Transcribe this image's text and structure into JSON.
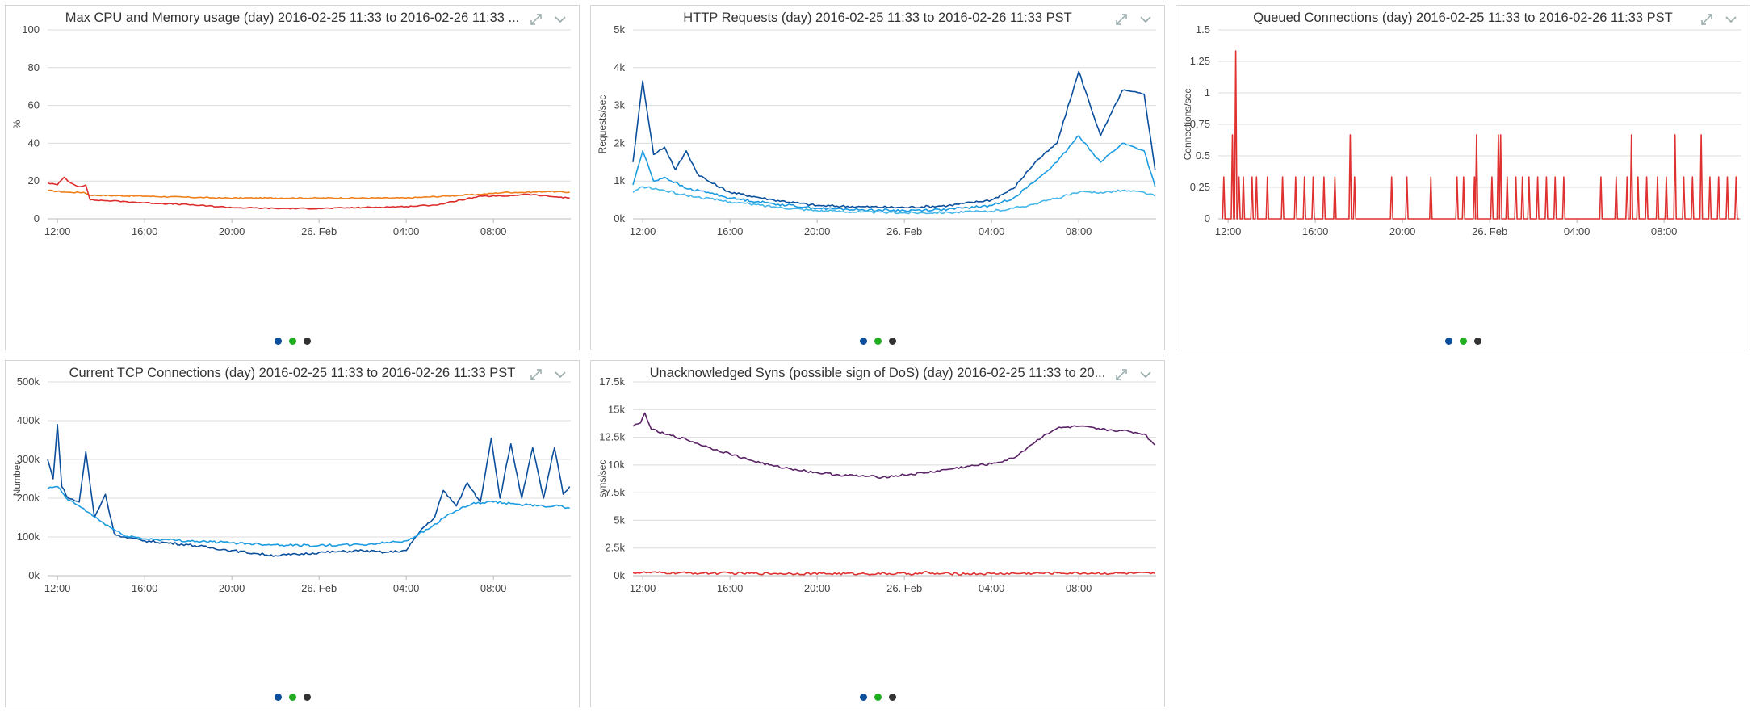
{
  "dot_colors": [
    "#0b4f9c",
    "#23ad23",
    "#333333"
  ],
  "panels": [
    {
      "key": "cpu",
      "title": "Max CPU and Memory usage (day) 2016-02-25 11:33 to 2016-02-26 11:33 ...",
      "controls": [
        "expand-icon",
        "chevron-down-icon"
      ],
      "chart_data": {
        "type": "line",
        "ylabel": "%",
        "ylim": [
          0,
          100
        ],
        "yticks": [
          "0",
          "20",
          "40",
          "60",
          "80",
          "100"
        ],
        "ytick_values": [
          0,
          20,
          40,
          60,
          80,
          100
        ],
        "xticks": [
          "12:00",
          "16:00",
          "20:00",
          "26. Feb",
          "04:00",
          "08:00"
        ],
        "xtick_hours": [
          12,
          16,
          20,
          24,
          28,
          32
        ],
        "xlim_hours": [
          11.55,
          35.55
        ],
        "grid": true,
        "series": [
          {
            "color": "#ef7f1a",
            "x": [
              11.55,
              12.5,
              13.2,
              13.5,
              16,
              19.5,
              24,
              28,
              29.8,
              30.5,
              31.5,
              32.5,
              33.5,
              34.5,
              35.5
            ],
            "y": [
              15,
              14,
              14,
              12.5,
              12,
              11,
              11,
              11,
              12,
              12.5,
              13,
              14,
              14,
              14.5,
              14
            ]
          },
          {
            "color": "#dd2c2c",
            "x": [
              11.55,
              12.0,
              12.3,
              12.6,
              13.0,
              13.3,
              13.5,
              14.5,
              16,
              18,
              20,
              22,
              24,
              26,
              28,
              29.5,
              30.5,
              31.5,
              32.5,
              33.5,
              34.5,
              35.5
            ],
            "y": [
              19,
              18,
              22,
              19,
              17,
              18,
              10,
              9.5,
              8.5,
              7.5,
              6,
              5.5,
              5.5,
              6,
              6.5,
              7.5,
              10,
              12,
              12,
              13,
              12,
              11
            ]
          }
        ]
      }
    },
    {
      "key": "http",
      "title": "HTTP Requests (day) 2016-02-25 11:33 to 2016-02-26 11:33 PST",
      "controls": [
        "expand-icon",
        "chevron-down-icon"
      ],
      "chart_data": {
        "type": "line",
        "ylabel": "Requests/sec",
        "ylim": [
          0,
          5000
        ],
        "yticks": [
          "0k",
          "1k",
          "2k",
          "3k",
          "4k",
          "5k"
        ],
        "ytick_values": [
          0,
          1000,
          2000,
          3000,
          4000,
          5000
        ],
        "xticks": [
          "12:00",
          "16:00",
          "20:00",
          "26. Feb",
          "04:00",
          "08:00"
        ],
        "xtick_hours": [
          12,
          16,
          20,
          24,
          28,
          32
        ],
        "xlim_hours": [
          11.55,
          35.55
        ],
        "grid": true,
        "series": [
          {
            "color": "#0b4f9c",
            "x": [
              11.55,
              12.0,
              12.5,
              13.0,
              13.5,
              14.0,
              14.5,
              15,
              16,
              18,
              20,
              22,
              24,
              26,
              28,
              29.0,
              30,
              31,
              32,
              33,
              34,
              35,
              35.5
            ],
            "y": [
              1500,
              3650,
              1700,
              1900,
              1300,
              1800,
              1200,
              1000,
              700,
              500,
              350,
              320,
              300,
              350,
              500,
              800,
              1500,
              2000,
              3900,
              2200,
              3400,
              3300,
              1300
            ]
          },
          {
            "color": "#1b9be0",
            "x": [
              11.55,
              12.0,
              12.5,
              13,
              14,
              15,
              16,
              18,
              20,
              22,
              24,
              26,
              28,
              29,
              30,
              31,
              32,
              33,
              34,
              35,
              35.5
            ],
            "y": [
              900,
              1800,
              1000,
              1100,
              800,
              700,
              550,
              400,
              280,
              240,
              220,
              250,
              350,
              550,
              1000,
              1500,
              2200,
              1500,
              2000,
              1800,
              850
            ]
          },
          {
            "color": "#45b7e8",
            "x": [
              11.55,
              12,
              13,
              14,
              16,
              18,
              20,
              22,
              24,
              26,
              28,
              29,
              30,
              31,
              32,
              33,
              34,
              35,
              35.5
            ],
            "y": [
              700,
              850,
              750,
              620,
              450,
              320,
              220,
              180,
              160,
              170,
              200,
              280,
              400,
              550,
              700,
              700,
              750,
              700,
              600
            ]
          }
        ]
      }
    },
    {
      "key": "queued",
      "title": "Queued Connections (day) 2016-02-25 11:33 to 2016-02-26 11:33 PST",
      "controls": [
        "expand-icon",
        "chevron-down-icon"
      ],
      "chart_data": {
        "type": "line",
        "ylabel": "Connections/sec",
        "ylim": [
          0,
          1.5
        ],
        "yticks": [
          "0",
          "0.25",
          "0.5",
          "0.75",
          "1",
          "1.25",
          "1.5"
        ],
        "ytick_values": [
          0,
          0.25,
          0.5,
          0.75,
          1,
          1.25,
          1.5
        ],
        "xticks": [
          "12:00",
          "16:00",
          "20:00",
          "26. Feb",
          "04:00",
          "08:00"
        ],
        "xtick_hours": [
          12,
          16,
          20,
          24,
          28,
          32
        ],
        "xlim_hours": [
          11.55,
          35.55
        ],
        "grid": true,
        "series": [
          {
            "color": "#e03131",
            "spikes": [
              [
                11.8,
                0.333
              ],
              [
                12.2,
                0.667
              ],
              [
                12.35,
                1.333
              ],
              [
                12.5,
                0.333
              ],
              [
                12.7,
                0.333
              ],
              [
                13.1,
                0.333
              ],
              [
                13.3,
                0.333
              ],
              [
                13.8,
                0.333
              ],
              [
                14.5,
                0.333
              ],
              [
                15.1,
                0.333
              ],
              [
                15.5,
                0.333
              ],
              [
                15.9,
                0.333
              ],
              [
                16.4,
                0.333
              ],
              [
                16.9,
                0.333
              ],
              [
                17.6,
                0.667
              ],
              [
                17.8,
                0.333
              ],
              [
                19.5,
                0.333
              ],
              [
                20.2,
                0.333
              ],
              [
                21.3,
                0.333
              ],
              [
                22.5,
                0.333
              ],
              [
                22.8,
                0.333
              ],
              [
                23.3,
                0.333
              ],
              [
                23.4,
                0.667
              ],
              [
                24.1,
                0.333
              ],
              [
                24.4,
                0.667
              ],
              [
                24.5,
                0.667
              ],
              [
                24.8,
                0.333
              ],
              [
                25.2,
                0.333
              ],
              [
                25.5,
                0.333
              ],
              [
                25.8,
                0.333
              ],
              [
                26.2,
                0.333
              ],
              [
                26.6,
                0.333
              ],
              [
                27.0,
                0.333
              ],
              [
                27.4,
                0.333
              ],
              [
                29.1,
                0.333
              ],
              [
                29.8,
                0.333
              ],
              [
                30.3,
                0.333
              ],
              [
                30.5,
                0.667
              ],
              [
                30.8,
                0.333
              ],
              [
                31.2,
                0.333
              ],
              [
                31.7,
                0.333
              ],
              [
                32.1,
                0.333
              ],
              [
                32.5,
                0.667
              ],
              [
                32.9,
                0.333
              ],
              [
                33.3,
                0.333
              ],
              [
                33.7,
                0.667
              ],
              [
                34.1,
                0.333
              ],
              [
                34.5,
                0.333
              ],
              [
                34.9,
                0.333
              ],
              [
                35.3,
                0.333
              ]
            ]
          }
        ]
      }
    },
    {
      "key": "tcp",
      "title": "Current TCP Connections (day) 2016-02-25 11:33 to 2016-02-26 11:33 PST",
      "controls": [
        "expand-icon",
        "chevron-down-icon"
      ],
      "chart_data": {
        "type": "line",
        "ylabel": "Number",
        "ylim": [
          0,
          500000
        ],
        "yticks": [
          "0k",
          "100k",
          "200k",
          "300k",
          "400k",
          "500k"
        ],
        "ytick_values": [
          0,
          100000,
          200000,
          300000,
          400000,
          500000
        ],
        "xticks": [
          "12:00",
          "16:00",
          "20:00",
          "26. Feb",
          "04:00",
          "08:00"
        ],
        "xtick_hours": [
          12,
          16,
          20,
          24,
          28,
          32
        ],
        "xlim_hours": [
          11.55,
          35.55
        ],
        "grid": true,
        "series": [
          {
            "color": "#0b4f9c",
            "x": [
              11.55,
              11.8,
              12.0,
              12.2,
              12.5,
              13.0,
              13.3,
              13.7,
              14.2,
              14.6,
              15.0,
              16,
              18,
              20,
              21,
              22,
              23,
              24,
              25,
              26,
              27,
              28,
              28.7,
              29.3,
              29.7,
              30.3,
              30.8,
              31.4,
              31.9,
              32.3,
              32.8,
              33.3,
              33.8,
              34.3,
              34.8,
              35.2,
              35.5
            ],
            "y": [
              300000,
              250000,
              390000,
              230000,
              200000,
              190000,
              320000,
              150000,
              210000,
              110000,
              100000,
              90000,
              80000,
              65000,
              58000,
              52000,
              55000,
              60000,
              62000,
              65000,
              60000,
              65000,
              120000,
              150000,
              220000,
              180000,
              240000,
              190000,
              355000,
              200000,
              340000,
              200000,
              330000,
              200000,
              330000,
              210000,
              230000
            ]
          },
          {
            "color": "#1b9be0",
            "x": [
              11.55,
              12.0,
              12.5,
              13,
              14,
              15,
              16,
              18,
              20,
              22,
              24,
              26,
              28,
              29,
              30,
              31,
              32,
              33,
              34,
              35,
              35.5
            ],
            "y": [
              225000,
              230000,
              195000,
              180000,
              140000,
              105000,
              95000,
              90000,
              85000,
              80000,
              78000,
              80000,
              90000,
              120000,
              160000,
              185000,
              190000,
              185000,
              180000,
              180000,
              175000
            ]
          }
        ]
      }
    },
    {
      "key": "syns",
      "title": "Unacknowledged Syns (possible sign of DoS) (day) 2016-02-25 11:33 to 20...",
      "controls": [
        "expand-icon",
        "chevron-down-icon"
      ],
      "chart_data": {
        "type": "line",
        "ylabel": "syns/sec",
        "ylim": [
          0,
          17500
        ],
        "yticks": [
          "0k",
          "2.5k",
          "5k",
          "7.5k",
          "10k",
          "12.5k",
          "15k",
          "17.5k"
        ],
        "ytick_values": [
          0,
          2500,
          5000,
          7500,
          10000,
          12500,
          15000,
          17500
        ],
        "xticks": [
          "12:00",
          "16:00",
          "20:00",
          "26. Feb",
          "04:00",
          "08:00"
        ],
        "xtick_hours": [
          12,
          16,
          20,
          24,
          28,
          32
        ],
        "xlim_hours": [
          11.55,
          35.55
        ],
        "grid": true,
        "series": [
          {
            "color": "#5a2366",
            "x": [
              11.55,
              11.9,
              12.1,
              12.4,
              13,
              14,
              15,
              16,
              17,
              18,
              19,
              20,
              21,
              22,
              23,
              24,
              25,
              26,
              27,
              28,
              29,
              29.8,
              30.5,
              31,
              32,
              33,
              34,
              35,
              35.5
            ],
            "y": [
              13500,
              13800,
              14700,
              13200,
              12800,
              12300,
              11600,
              11000,
              10400,
              9900,
              9600,
              9300,
              9100,
              9000,
              8900,
              9100,
              9300,
              9600,
              9900,
              10100,
              10600,
              11800,
              12800,
              13300,
              13500,
              13200,
              13100,
              12800,
              11800
            ]
          },
          {
            "color": "#e03131",
            "x": [
              11.55,
              14,
              18,
              22,
              24.8,
              25,
              25.2,
              28,
              31,
              35.5
            ],
            "y": [
              280,
              240,
              200,
              180,
              180,
              380,
              180,
              180,
              240,
              200
            ]
          }
        ]
      }
    }
  ]
}
